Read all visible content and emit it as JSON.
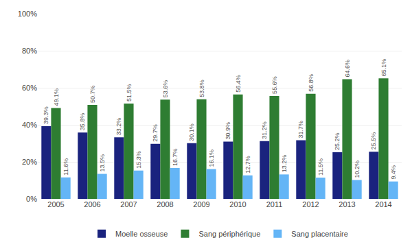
{
  "chart_data": {
    "type": "bar",
    "categories": [
      "2005",
      "2006",
      "2007",
      "2008",
      "2009",
      "2010",
      "2011",
      "2012",
      "2013",
      "2014"
    ],
    "series": [
      {
        "name": "Moelle osseuse",
        "color": "#1a237e",
        "values": [
          39.3,
          35.8,
          33.2,
          29.7,
          30.1,
          30.9,
          31.2,
          31.7,
          25.2,
          25.5
        ],
        "value_labels": [
          "39.3%",
          "35.8%",
          "33.2%",
          "29.7%",
          "30.1%",
          "30.9%",
          "31.2%",
          "31.7%",
          "25.2%",
          "25.5%"
        ]
      },
      {
        "name": "Sang périphérique",
        "color": "#2e7d32",
        "values": [
          49.1,
          50.7,
          51.5,
          53.6,
          53.8,
          56.4,
          55.6,
          56.8,
          64.6,
          65.1
        ],
        "value_labels": [
          "49.1%",
          "50.7%",
          "51.5%",
          "53.6%",
          "53.8%",
          "56.4%",
          "55.6%",
          "56.8%",
          "64.6%",
          "65.1%"
        ]
      },
      {
        "name": "Sang placentaire",
        "color": "#64b5f6",
        "values": [
          11.6,
          13.5,
          15.3,
          16.7,
          16.1,
          12.7,
          13.2,
          11.5,
          10.2,
          9.4
        ],
        "value_labels": [
          "11.6%",
          "13.5%",
          "15.3%",
          "16.7%",
          "16.1%",
          "12.7%",
          "13.2%",
          "11.5%",
          "10.2%",
          "9.4%"
        ]
      }
    ],
    "ylim": [
      0,
      100
    ],
    "yticks": [
      {
        "value": 0,
        "label": "0%"
      },
      {
        "value": 20,
        "label": "20%"
      },
      {
        "value": 40,
        "label": "40%"
      },
      {
        "value": 60,
        "label": "60%"
      },
      {
        "value": 80,
        "label": "80%"
      },
      {
        "value": 100,
        "label": "100%"
      }
    ],
    "grid": true,
    "legend": "bottom",
    "data_labels": true
  }
}
